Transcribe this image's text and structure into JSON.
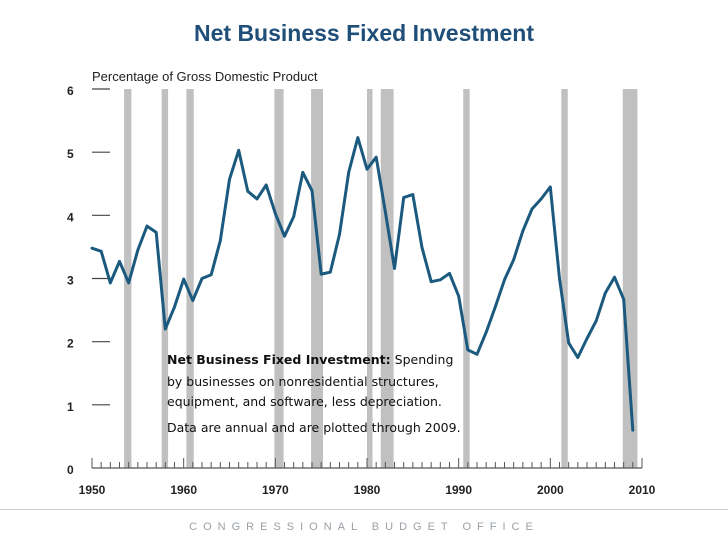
{
  "chart_data": {
    "type": "line",
    "title": "Net Business Fixed Investment",
    "ylabel": "Percentage of Gross Domestic Product",
    "xlabel": "",
    "xlim": [
      1950,
      2010
    ],
    "ylim": [
      0,
      6
    ],
    "x_ticks": [
      1950,
      1960,
      1970,
      1980,
      1990,
      2000,
      2010
    ],
    "y_ticks": [
      0,
      1,
      2,
      3,
      4,
      5,
      6
    ],
    "colors": {
      "line": "#1b5a7e",
      "recession": "#c0c0c0",
      "axis": "#555555"
    },
    "recessions": [
      [
        1953.5,
        1954.3
      ],
      [
        1957.6,
        1958.3
      ],
      [
        1960.3,
        1961.1
      ],
      [
        1969.9,
        1970.9
      ],
      [
        1973.9,
        1975.2
      ],
      [
        1980.0,
        1980.6
      ],
      [
        1981.5,
        1982.9
      ],
      [
        1990.5,
        1991.2
      ],
      [
        2001.2,
        2001.9
      ],
      [
        2007.9,
        2009.5
      ]
    ],
    "series": [
      {
        "x": [
          1950,
          1951,
          1952,
          1953,
          1954,
          1955,
          1956,
          1957,
          1958,
          1959,
          1960,
          1961,
          1962,
          1963,
          1964,
          1965,
          1966,
          1967,
          1968,
          1969,
          1970,
          1971,
          1972,
          1973,
          1974,
          1975,
          1976,
          1977,
          1978,
          1979,
          1980,
          1981,
          1982,
          1983,
          1984,
          1985,
          1986,
          1987,
          1988,
          1989,
          1990,
          1991,
          1992,
          1993,
          1994,
          1995,
          1996,
          1997,
          1998,
          1999,
          2000,
          2001,
          2002,
          2003,
          2004,
          2005,
          2006,
          2007,
          2008,
          2009
        ],
        "values": [
          3.48,
          3.43,
          2.93,
          3.27,
          2.93,
          3.45,
          3.83,
          3.73,
          2.2,
          2.55,
          2.99,
          2.65,
          3.0,
          3.06,
          3.6,
          4.57,
          5.03,
          4.38,
          4.26,
          4.48,
          4.03,
          3.67,
          3.98,
          4.68,
          4.39,
          3.07,
          3.1,
          3.7,
          4.68,
          5.23,
          4.73,
          4.92,
          4.06,
          3.16,
          4.28,
          4.33,
          3.49,
          2.95,
          2.98,
          3.08,
          2.72,
          1.87,
          1.8,
          2.15,
          2.55,
          2.98,
          3.3,
          3.75,
          4.1,
          4.26,
          4.45,
          3.0,
          1.98,
          1.75,
          2.05,
          2.33,
          2.77,
          3.02,
          2.67,
          0.6
        ]
      }
    ],
    "annotation": {
      "bold": "Net Business Fixed Investment:",
      "rest_line1": " Spending",
      "line2": "by businesses on nonresidential structures,",
      "line3": "equipment, and software, less depreciation.",
      "line4": "Data are annual and are plotted through 2009."
    }
  },
  "footer": "CONGRESSIONAL BUDGET OFFICE"
}
